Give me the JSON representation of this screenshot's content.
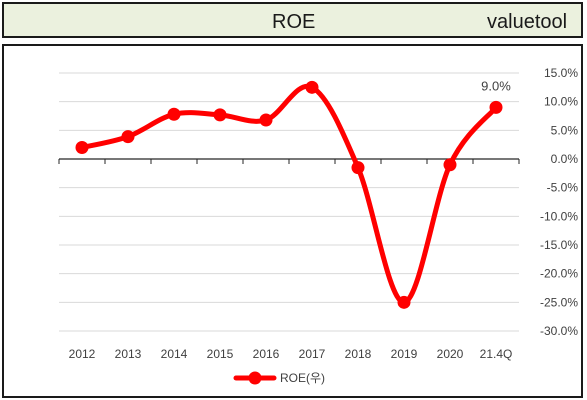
{
  "header": {
    "title": "ROE",
    "brand": "valuetool"
  },
  "colors": {
    "series": "#ff0000",
    "header_bg": "#ebf1de",
    "grid": "#d9d9d9",
    "axis": "#262626"
  },
  "chart_data": {
    "type": "line",
    "smooth": true,
    "categories": [
      "2012",
      "2013",
      "2014",
      "2015",
      "2016",
      "2017",
      "2018",
      "2019",
      "2020",
      "21.4Q"
    ],
    "series": [
      {
        "name": "ROE(우)",
        "values": [
          2.0,
          3.9,
          7.8,
          7.7,
          6.8,
          12.5,
          -1.5,
          -25.0,
          -1.0,
          9.0
        ],
        "axis": "right"
      }
    ],
    "data_labels": [
      {
        "index": 9,
        "text": "9.0%"
      }
    ],
    "y_ticks": [
      "15.0%",
      "10.0%",
      "5.0%",
      "0.0%",
      "-5.0%",
      "-10.0%",
      "-15.0%",
      "-20.0%",
      "-25.0%",
      "-30.0%"
    ],
    "ylim": [
      -30,
      15
    ],
    "grid": true,
    "legend": "bottom"
  }
}
